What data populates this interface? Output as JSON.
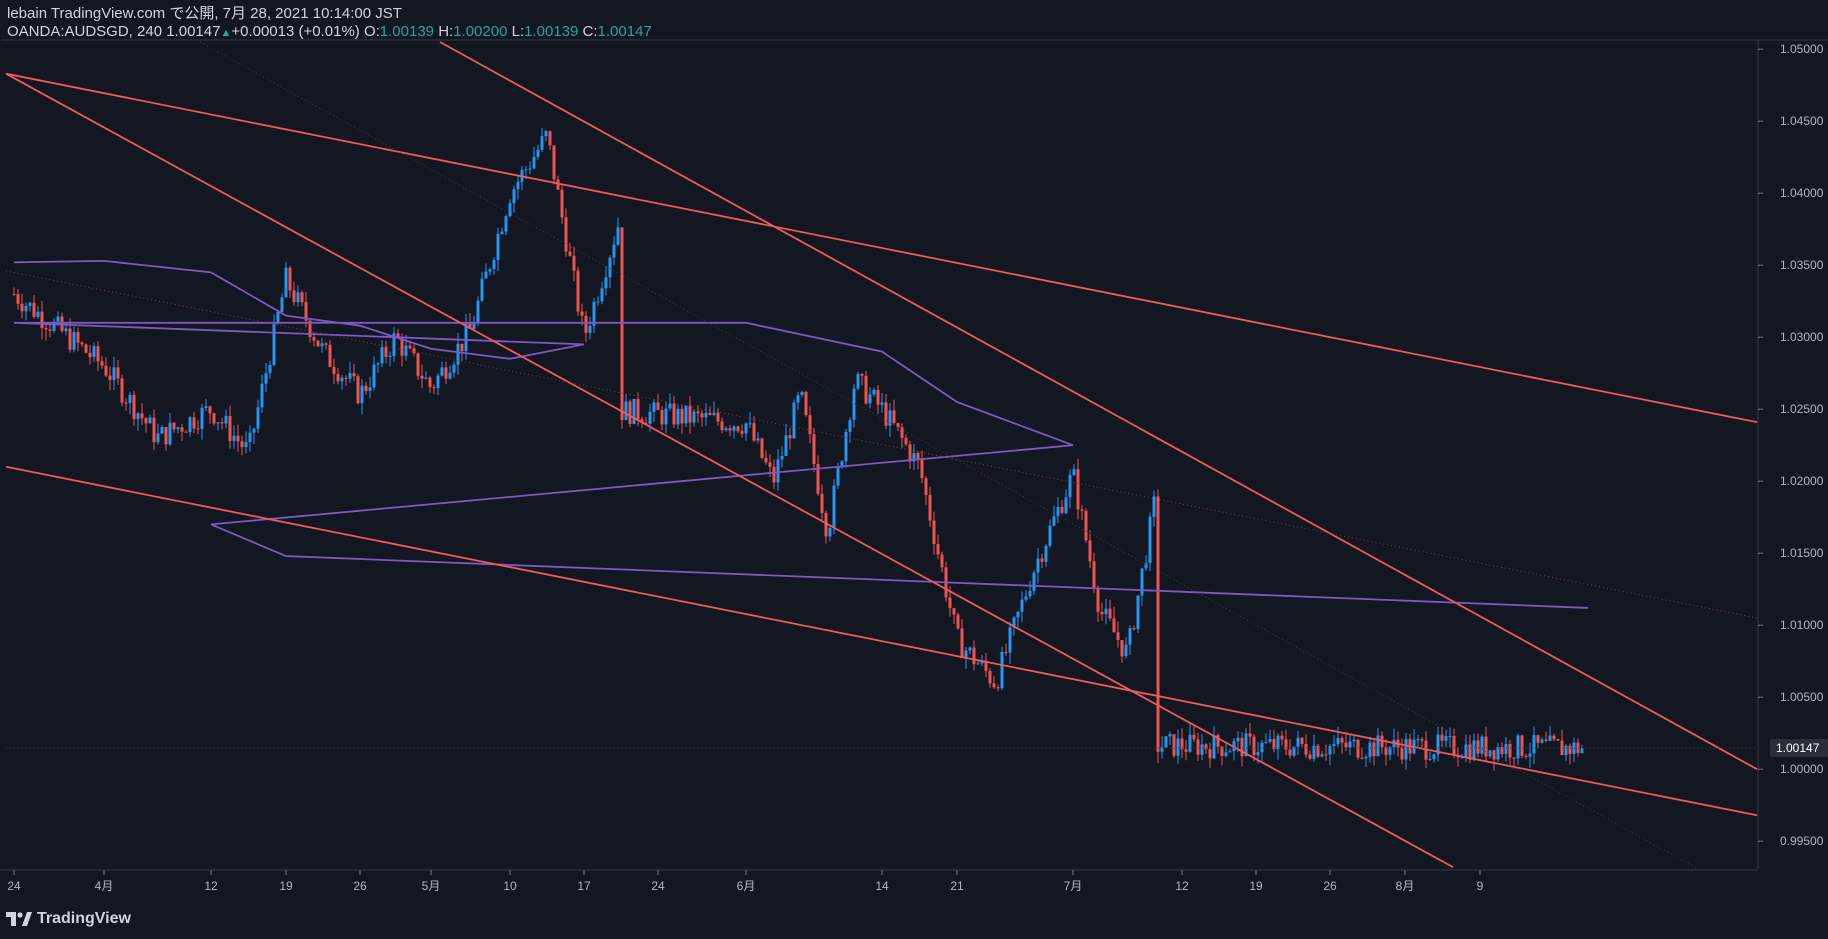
{
  "header": {
    "published": "lebain TradingView.com で公開, 7月 28, 2021 10:14:00 JST",
    "symbol": "OANDA:AUDSGD, 240",
    "last": "1.00147",
    "change": "+0.00013 (+0.01%)",
    "o_label": "O:",
    "o_value": "1.00139",
    "h_label": "H:",
    "h_value": "1.00200",
    "l_label": "L:",
    "l_value": "1.00139",
    "c_label": "C:",
    "c_value": "1.00147"
  },
  "brand": "TradingView",
  "colors": {
    "background": "#131722",
    "up": "#2196f3",
    "down": "#ef5350",
    "trendline": "#f05a5a",
    "moving_average": "#7e57c2",
    "text": "#b2b5be"
  },
  "chart_data": {
    "type": "candlestick",
    "timeframe": "240",
    "symbol": "OANDA:AUDSGD",
    "ylim": [
      0.993,
      1.0505
    ],
    "y_ticks": [
      "1.05000",
      "1.04500",
      "1.04000",
      "1.03500",
      "1.03000",
      "1.02500",
      "1.02000",
      "1.01500",
      "1.01000",
      "1.00500",
      "1.00000",
      "0.99500"
    ],
    "x_ticks": [
      "24",
      "4月",
      "12",
      "19",
      "26",
      "5月",
      "10",
      "17",
      "24",
      "6月",
      "14",
      "21",
      "7月",
      "12",
      "19",
      "26",
      "8月",
      "9"
    ],
    "current_price_label": "1.00147",
    "close_path": [
      [
        "24",
        1.033
      ],
      [
        "4月",
        1.028
      ],
      [
        "4月",
        1.023
      ],
      [
        "12",
        1.025
      ],
      [
        "12",
        1.022
      ],
      [
        "19",
        1.034
      ],
      [
        "19",
        1.029
      ],
      [
        "26",
        1.026
      ],
      [
        "26",
        1.03
      ],
      [
        "5月",
        1.0265
      ],
      [
        "5月",
        1.0305
      ],
      [
        "10",
        1.04
      ],
      [
        "10",
        1.044
      ],
      [
        "17",
        1.03
      ],
      [
        "17",
        1.0385
      ],
      [
        "24",
        1.032
      ],
      [
        "24",
        1.029
      ],
      [
        "6月",
        1.024
      ],
      [
        "6月",
        1.02
      ],
      [
        "6月",
        1.026
      ],
      [
        "6月",
        1.0165
      ],
      [
        "6月",
        1.027
      ],
      [
        "14",
        1.025
      ],
      [
        "14",
        1.021
      ],
      [
        "21",
        1.009
      ],
      [
        "21",
        1.006
      ],
      [
        "21",
        1.014
      ],
      [
        "7月",
        1.0205
      ],
      [
        "7月",
        1.011
      ],
      [
        "7月",
        1.008
      ],
      [
        "7月",
        1.0185
      ],
      [
        "12",
        1.005
      ],
      [
        "12",
        1.012
      ],
      [
        "19",
        1.01
      ],
      [
        "19",
        1.001
      ],
      [
        "26",
        1.002
      ],
      [
        "26",
        1.00147
      ]
    ],
    "moving_average_path": [
      [
        "24",
        1.0352
      ],
      [
        "4月",
        1.0353
      ],
      [
        "12",
        1.0345
      ],
      [
        "19",
        1.0315
      ],
      [
        "26",
        1.0308
      ],
      [
        "5月",
        1.0292
      ],
      [
        "10",
        1.0285
      ],
      [
        "17",
        1.0295
      ],
      [
        "24",
        1.031
      ],
      [
        "6月",
        1.031
      ],
      [
        "14",
        1.029
      ],
      [
        "21",
        1.0255
      ],
      [
        "7月",
        1.0225
      ],
      [
        "12",
        1.017
      ],
      [
        "19",
        1.0148
      ],
      [
        "26",
        1.0112
      ]
    ],
    "trendlines": [
      {
        "from": [
          "24",
          1.0483
        ],
        "to": [
          "9",
          1.0241
        ]
      },
      {
        "from": [
          "24",
          1.0483
        ],
        "to": [
          "19",
          0.9932
        ]
      },
      {
        "from": [
          "5月",
          1.0505
        ],
        "to": [
          "9",
          1.0
        ]
      },
      {
        "from": [
          "24",
          1.021
        ],
        "to": [
          "9",
          0.9968
        ]
      }
    ]
  }
}
